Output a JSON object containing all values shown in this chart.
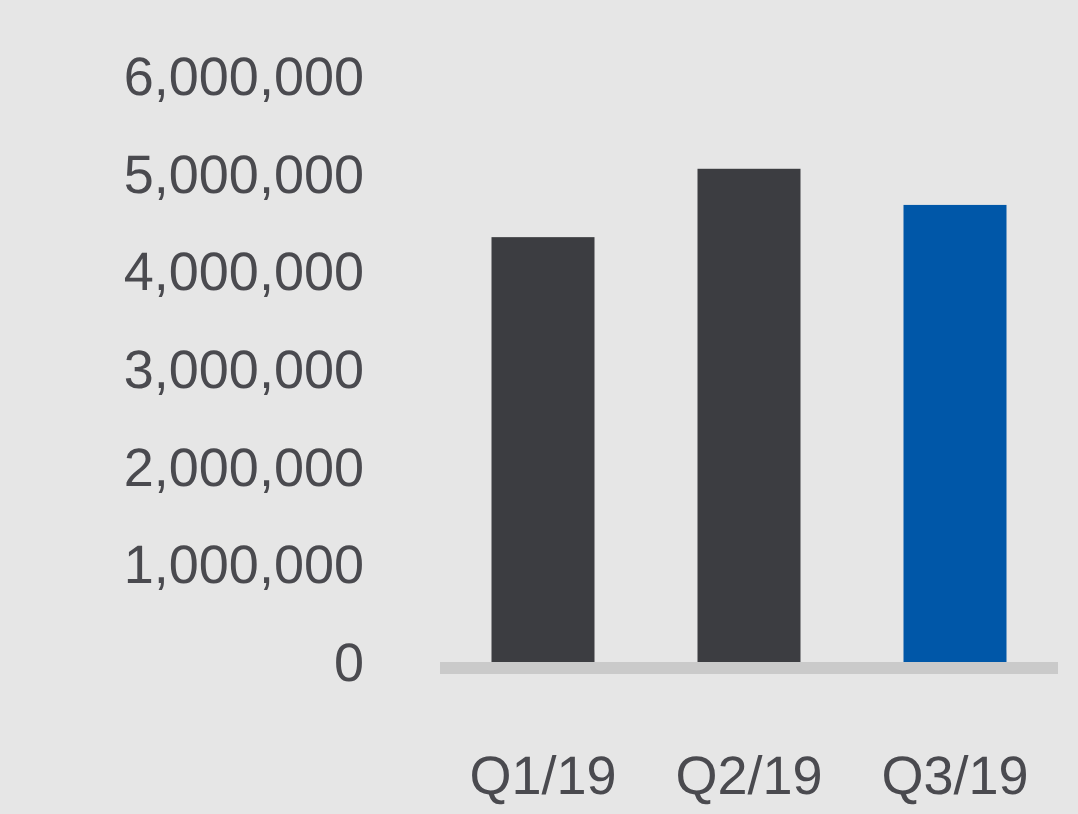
{
  "chart_data": {
    "type": "bar",
    "categories": [
      "Q1/19",
      "Q2/19",
      "Q3/19"
    ],
    "values": [
      4350000,
      5050000,
      4680000
    ],
    "colors": [
      "#3c3d41",
      "#3c3d41",
      "#0057a8"
    ],
    "ylim": [
      0,
      6000000
    ],
    "yticks": [
      {
        "value": 0,
        "label": "0"
      },
      {
        "value": 1000000,
        "label": "1,000,000"
      },
      {
        "value": 2000000,
        "label": "2,000,000"
      },
      {
        "value": 3000000,
        "label": "3,000,000"
      },
      {
        "value": 4000000,
        "label": "4,000,000"
      },
      {
        "value": 5000000,
        "label": "5,000,000"
      },
      {
        "value": 6000000,
        "label": "6,000,000"
      }
    ],
    "grid": false
  }
}
